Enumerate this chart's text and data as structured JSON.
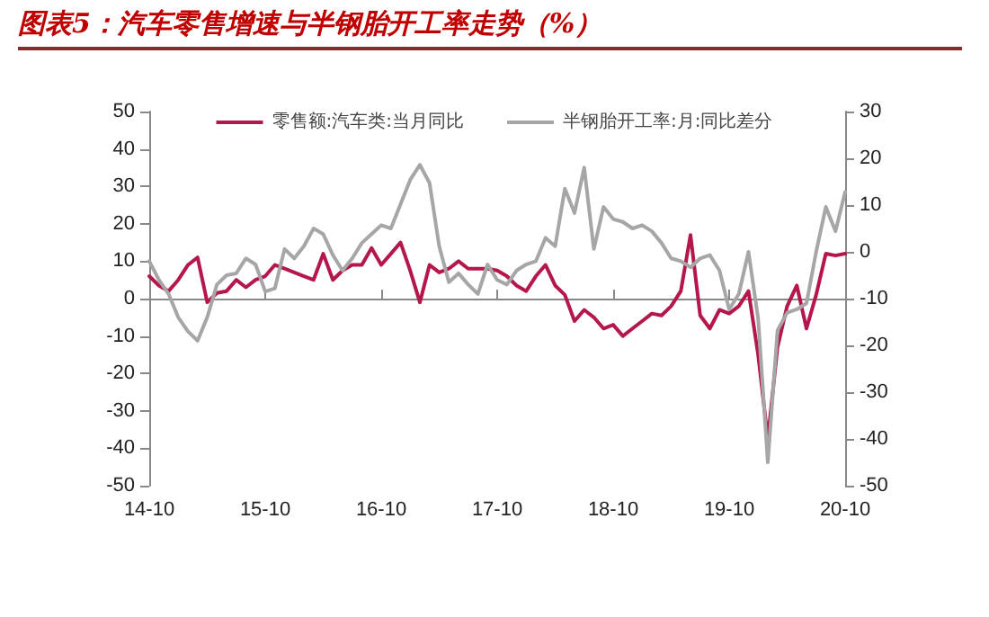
{
  "chart_data": {
    "type": "line",
    "title": "图表5：汽车零售增速与半钢胎开工率走势（%）",
    "categories": [
      "14-10",
      null,
      null,
      null,
      null,
      null,
      null,
      null,
      null,
      null,
      null,
      null,
      "15-10",
      null,
      null,
      null,
      null,
      null,
      null,
      null,
      null,
      null,
      null,
      null,
      "16-10",
      null,
      null,
      null,
      null,
      null,
      null,
      null,
      null,
      null,
      null,
      null,
      "17-10",
      null,
      null,
      null,
      null,
      null,
      null,
      null,
      null,
      null,
      null,
      null,
      "18-10",
      null,
      null,
      null,
      null,
      null,
      null,
      null,
      null,
      null,
      null,
      null,
      "19-10",
      null,
      null,
      null,
      null,
      null,
      null,
      null,
      null,
      null,
      null,
      null,
      "20-10"
    ],
    "series": [
      {
        "name": "零售额:汽车类:当月同比",
        "color": "#b5174b",
        "values": [
          6,
          3.5,
          2,
          5,
          9,
          11,
          -1,
          1.5,
          2,
          5,
          3,
          5,
          6,
          9,
          8,
          7,
          6,
          5,
          12,
          5,
          7.5,
          9,
          9,
          13.5,
          9,
          12,
          15,
          7.5,
          -1,
          9,
          7,
          8,
          10,
          8,
          8,
          8,
          7.5,
          6,
          3.5,
          2,
          6,
          9,
          3.5,
          1,
          -6,
          -3,
          -5,
          -8,
          -7,
          -10,
          -8,
          -6,
          -4,
          -4.5,
          -2,
          2,
          17,
          -4.5,
          -8,
          -3,
          -4,
          -2,
          2,
          -15,
          -37.5,
          -13,
          -2,
          3.5,
          -8,
          1,
          12,
          11.5,
          12
        ]
      },
      {
        "name": "半钢胎开工率:月:同比差分",
        "color": "#a6a6a6",
        "axis": "y2",
        "values": [
          -2,
          -6,
          -9,
          -14,
          -17,
          -19,
          -14,
          -7,
          -5,
          -4.6,
          -1.4,
          -2.7,
          -8.5,
          -7.8,
          0.6,
          -1.4,
          1.2,
          5,
          3.8,
          -0.7,
          -4,
          -1.4,
          1.9,
          3.8,
          5.7,
          5,
          10.2,
          15.4,
          18.6,
          14.7,
          1.2,
          -6.5,
          -4.6,
          -7,
          -9,
          -2.7,
          -6,
          -7,
          -4,
          -2.7,
          -2,
          3,
          1.2,
          13.5,
          8.3,
          18,
          0.6,
          9.6,
          7,
          6.4,
          5,
          5.7,
          4.4,
          1.9,
          -1.4,
          -2,
          -3.3,
          -1.4,
          -0.7,
          -4,
          -12.3,
          -9,
          0,
          -14.3,
          -45,
          -16.8,
          -13,
          -12.3,
          -11,
          0,
          9.6,
          4.4,
          12.8
        ]
      }
    ],
    "ylim": [
      -50,
      50
    ],
    "yticks": [
      -50,
      -40,
      -30,
      -20,
      -10,
      0,
      10,
      20,
      30,
      40,
      50
    ],
    "y2lim": [
      -50,
      30
    ],
    "y2ticks": [
      -50,
      -40,
      -30,
      -20,
      -10,
      0,
      10,
      20,
      30
    ],
    "legend": "top",
    "marker": "none",
    "line_style": "solid"
  }
}
